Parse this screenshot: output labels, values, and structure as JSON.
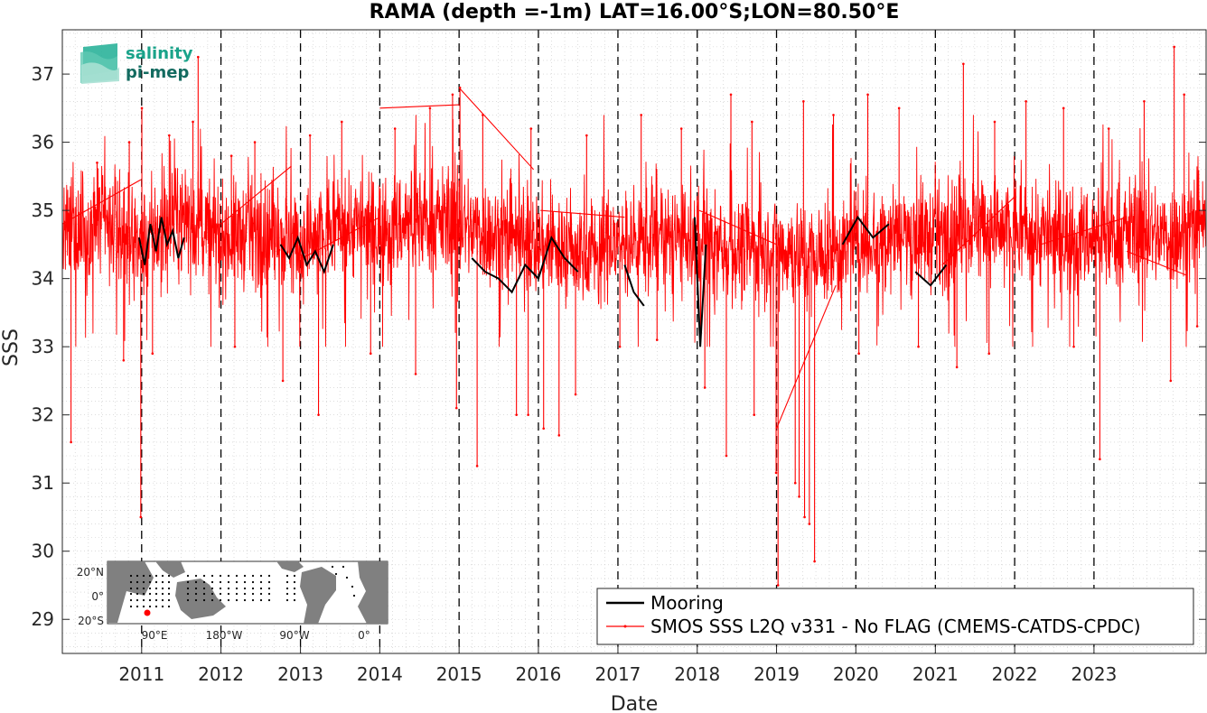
{
  "chart_data": {
    "type": "line",
    "title": "RAMA (depth =-1m) LAT=16.00°S;LON=80.50°E",
    "xlabel": "Date",
    "ylabel": "SSS",
    "xlim": [
      "2010-01-01",
      "2024-05-31"
    ],
    "ylim": [
      28.5,
      37.65
    ],
    "x_ticks": [
      "2011",
      "2012",
      "2013",
      "2014",
      "2015",
      "2016",
      "2017",
      "2018",
      "2019",
      "2020",
      "2021",
      "2022",
      "2023"
    ],
    "y_ticks": [
      29,
      30,
      31,
      32,
      33,
      34,
      35,
      36,
      37
    ],
    "grid": "minor-dotted",
    "year_markers": "dashed-vertical",
    "legend_position": "bottom-right",
    "series": [
      {
        "name": "Mooring",
        "color": "#000000",
        "segments": [
          {
            "x": [
              "2010-12-20",
              "2011-01-15",
              "2011-02-10",
              "2011-03-08",
              "2011-04-02",
              "2011-04-28",
              "2011-05-24",
              "2011-06-19",
              "2011-07-15"
            ],
            "y": [
              34.6,
              34.2,
              34.8,
              34.4,
              34.9,
              34.5,
              34.7,
              34.3,
              34.6
            ]
          },
          {
            "x": [
              "2012-10-01",
              "2012-11-10",
              "2012-12-20",
              "2013-01-30",
              "2013-03-10",
              "2013-04-20",
              "2013-06-01"
            ],
            "y": [
              34.5,
              34.3,
              34.6,
              34.2,
              34.4,
              34.1,
              34.5
            ]
          },
          {
            "x": [
              "2015-03-01",
              "2015-05-01",
              "2015-07-01",
              "2015-09-01",
              "2015-11-01",
              "2016-01-01",
              "2016-03-01",
              "2016-05-01",
              "2016-07-01"
            ],
            "y": [
              34.3,
              34.1,
              34.0,
              33.8,
              34.2,
              34.0,
              34.6,
              34.3,
              34.1
            ]
          },
          {
            "x": [
              "2017-02-01",
              "2017-03-15",
              "2017-05-01"
            ],
            "y": [
              34.2,
              33.8,
              33.6
            ]
          },
          {
            "x": [
              "2017-12-20",
              "2018-01-15",
              "2018-02-10"
            ],
            "y": [
              34.9,
              33.0,
              34.5
            ]
          },
          {
            "x": [
              "2019-11-01",
              "2020-01-10",
              "2020-03-20",
              "2020-06-01"
            ],
            "y": [
              34.5,
              34.9,
              34.6,
              34.8
            ]
          },
          {
            "x": [
              "2020-10-01",
              "2020-12-10",
              "2021-02-20"
            ],
            "y": [
              34.1,
              33.9,
              34.2
            ]
          }
        ]
      },
      {
        "name": "SMOS SSS L2Q v331 - No FLAG  (CMEMS-CATDS-CPDC)",
        "color": "#ff0000",
        "base_profile": {
          "x": [
            "2010-01-01",
            "2010-07-01",
            "2011-01-01",
            "2011-07-01",
            "2012-01-01",
            "2012-07-01",
            "2013-01-01",
            "2013-07-01",
            "2014-01-01",
            "2014-07-01",
            "2015-01-01",
            "2015-07-01",
            "2016-01-01",
            "2016-07-01",
            "2017-01-01",
            "2017-07-01",
            "2018-01-01",
            "2018-07-01",
            "2019-01-01",
            "2019-07-01",
            "2020-01-01",
            "2020-07-01",
            "2021-01-01",
            "2021-07-01",
            "2022-01-01",
            "2022-07-01",
            "2023-01-01",
            "2023-07-01",
            "2024-01-01",
            "2024-05-31"
          ],
          "y": [
            34.6,
            34.8,
            34.5,
            34.9,
            34.6,
            34.7,
            34.5,
            34.8,
            34.7,
            34.9,
            34.8,
            34.6,
            34.5,
            34.4,
            34.5,
            34.6,
            34.5,
            34.4,
            34.5,
            34.3,
            34.5,
            34.7,
            34.6,
            34.8,
            34.7,
            34.6,
            34.6,
            34.7,
            34.6,
            34.8
          ]
        },
        "high_spikes": {
          "x": [
            "2010-06-10",
            "2010-11-05",
            "2011-01-02",
            "2011-05-08",
            "2011-08-25",
            "2011-09-18",
            "2012-02-18",
            "2012-06-05",
            "2013-02-14",
            "2013-07-10",
            "2014-03-12",
            "2014-08-20",
            "2014-12-02",
            "2015-01-05",
            "2015-04-20",
            "2015-11-28",
            "2016-08-10",
            "2017-04-18",
            "2017-10-20",
            "2018-06-05",
            "2018-09-10",
            "2019-05-05",
            "2019-09-20",
            "2020-02-25",
            "2020-07-18",
            "2021-05-10",
            "2021-10-01",
            "2022-02-22",
            "2022-08-14",
            "2023-03-10",
            "2023-08-20",
            "2024-01-05",
            "2024-02-20"
          ],
          "y": [
            35.7,
            36.0,
            36.5,
            36.1,
            36.3,
            37.25,
            35.8,
            36.0,
            36.1,
            36.3,
            36.2,
            36.5,
            36.7,
            36.8,
            36.4,
            36.2,
            36.1,
            36.4,
            36.2,
            36.7,
            36.3,
            36.6,
            36.4,
            36.7,
            36.5,
            37.15,
            36.3,
            36.6,
            36.5,
            36.2,
            36.6,
            37.4,
            36.7
          ]
        },
        "low_spikes": {
          "x": [
            "2010-02-10",
            "2010-10-10",
            "2010-12-28",
            "2011-02-20",
            "2012-03-05",
            "2012-10-12",
            "2013-03-25",
            "2013-11-20",
            "2014-06-15",
            "2014-12-20",
            "2015-03-25",
            "2015-09-22",
            "2015-11-15",
            "2016-01-25",
            "2016-04-05",
            "2016-06-20",
            "2017-01-10",
            "2017-06-30",
            "2018-02-05",
            "2018-05-15",
            "2018-09-20",
            "2018-12-30",
            "2019-01-08",
            "2019-03-28",
            "2019-04-15",
            "2019-05-10",
            "2019-06-01",
            "2019-06-25",
            "2020-01-15",
            "2020-10-15",
            "2021-04-10",
            "2021-09-05",
            "2022-09-30",
            "2023-01-28",
            "2023-12-20",
            "2024-04-20"
          ],
          "y": [
            31.6,
            32.8,
            30.5,
            32.9,
            33.0,
            32.5,
            32.0,
            32.9,
            32.6,
            32.1,
            31.25,
            32.0,
            32.0,
            31.8,
            31.7,
            32.3,
            33.0,
            33.1,
            32.4,
            31.4,
            32.0,
            31.15,
            29.5,
            31.0,
            30.8,
            30.5,
            30.4,
            29.85,
            32.9,
            33.0,
            32.7,
            32.9,
            33.0,
            31.35,
            32.5,
            33.3
          ]
        },
        "gap_lines": [
          {
            "x": [
              "2010-01-01",
              "2010-12-28"
            ],
            "y": [
              34.8,
              35.45
            ]
          },
          {
            "x": [
              "2012-01-01",
              "2012-11-20"
            ],
            "y": [
              34.8,
              35.65
            ]
          },
          {
            "x": [
              "2013-01-10",
              "2014-01-01"
            ],
            "y": [
              34.3,
              34.9
            ]
          },
          {
            "x": [
              "2014-01-01",
              "2015-01-01"
            ],
            "y": [
              36.5,
              36.55
            ]
          },
          {
            "x": [
              "2015-01-01",
              "2015-12-10"
            ],
            "y": [
              36.8,
              35.6
            ]
          },
          {
            "x": [
              "2016-01-10",
              "2017-02-01"
            ],
            "y": [
              35.0,
              34.9
            ]
          },
          {
            "x": [
              "2018-01-10",
              "2019-01-01"
            ],
            "y": [
              35.0,
              34.5
            ]
          },
          {
            "x": [
              "2019-01-01",
              "2019-10-01"
            ],
            "y": [
              31.8,
              33.9
            ]
          },
          {
            "x": [
              "2021-02-01",
              "2022-01-01"
            ],
            "y": [
              34.2,
              35.2
            ]
          },
          {
            "x": [
              "2022-05-01",
              "2023-06-01"
            ],
            "y": [
              34.5,
              34.9
            ]
          },
          {
            "x": [
              "2023-06-01",
              "2024-03-01"
            ],
            "y": [
              34.4,
              34.05
            ]
          }
        ]
      }
    ]
  },
  "logo": {
    "line1": "salinity",
    "line2": "pi-mep",
    "color1": "#1aa38a",
    "color2": "#136b60"
  },
  "inset_map": {
    "lat_labels": [
      "20°N",
      "0°",
      "20°S"
    ],
    "lon_labels": [
      "90°E",
      "180°W",
      "90°W",
      "0°"
    ],
    "marker_color": "#ff0000",
    "land_color": "#808080"
  },
  "legend": {
    "entries": [
      "Mooring",
      "SMOS SSS L2Q v331 - No FLAG  (CMEMS-CATDS-CPDC)"
    ]
  }
}
